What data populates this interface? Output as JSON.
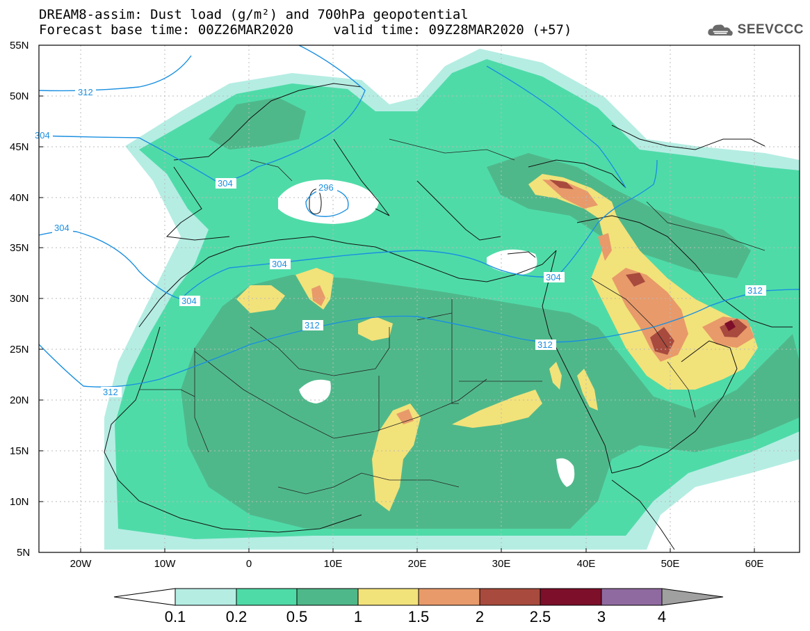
{
  "title": {
    "line1": "DREAM8-assim: Dust load (g/m²) and 700hPa geopotential",
    "line2": "Forecast base time: 00Z26MAR2020     valid time: 09Z28MAR2020 (+57)"
  },
  "logo": {
    "text": "SEEVCCC",
    "icon": "cloud-icon"
  },
  "map": {
    "lat_labels": [
      "55N",
      "50N",
      "45N",
      "40N",
      "35N",
      "30N",
      "25N",
      "20N",
      "15N",
      "10N",
      "5N"
    ],
    "lon_labels": [
      "20W",
      "10W",
      "0",
      "10E",
      "20E",
      "30E",
      "40E",
      "50E",
      "60E"
    ],
    "lat_range": [
      5,
      55
    ],
    "lon_range": [
      -25,
      65
    ]
  },
  "colorbar": {
    "labels": [
      "0.1",
      "0.2",
      "0.5",
      "1",
      "1.5",
      "2",
      "2.5",
      "3",
      "4"
    ],
    "colors": [
      "#b5ede3",
      "#4fdba8",
      "#4fb88a",
      "#f2e27a",
      "#e89a6a",
      "#a84a3d",
      "#7d0f2a",
      "#8f6aa0",
      "#a0a0a0"
    ]
  },
  "colors": {
    "c01": "#b5ede3",
    "c02": "#4fdba8",
    "c05": "#4fb88a",
    "c1": "#f2e27a",
    "c15": "#e89a6a",
    "c2": "#a84a3d",
    "c25": "#7d0f2a",
    "contour": "#1a8fe0"
  },
  "contours": [
    {
      "label": "312"
    },
    {
      "label": "304"
    },
    {
      "label": "304"
    },
    {
      "label": "296"
    },
    {
      "label": "304"
    },
    {
      "label": "304"
    },
    {
      "label": "304"
    },
    {
      "label": "304"
    },
    {
      "label": "312"
    },
    {
      "label": "312"
    },
    {
      "label": "312"
    },
    {
      "label": "312"
    }
  ]
}
